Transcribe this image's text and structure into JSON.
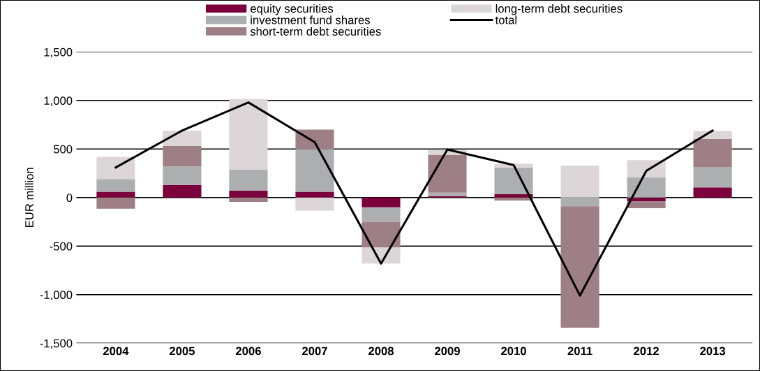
{
  "chart_data": {
    "type": "bar",
    "stacked": true,
    "ylabel": "EUR million",
    "categories": [
      "2004",
      "2005",
      "2006",
      "2007",
      "2008",
      "2009",
      "2010",
      "2011",
      "2012",
      "2013"
    ],
    "series": [
      {
        "name": "equity securities",
        "color": "#7b003c",
        "values": [
          60,
          130,
          70,
          60,
          -100,
          15,
          35,
          0,
          -40,
          105
        ]
      },
      {
        "name": "investment fund shares",
        "color": "#adaeb0",
        "values": [
          130,
          190,
          220,
          440,
          -150,
          35,
          275,
          -90,
          210,
          210
        ]
      },
      {
        "name": "short-term debt securities",
        "color": "#9e7f86",
        "values": [
          -115,
          210,
          -45,
          200,
          -265,
          390,
          -30,
          -1250,
          -70,
          290
        ]
      },
      {
        "name": "long-term debt securities",
        "color": "#ddd6d9",
        "values": [
          230,
          160,
          725,
          -135,
          -165,
          50,
          40,
          330,
          175,
          80
        ]
      },
      {
        "name": "total",
        "type": "line",
        "color": "#000000",
        "values": [
          310,
          690,
          980,
          570,
          -680,
          495,
          335,
          -1010,
          275,
          690
        ]
      }
    ],
    "ylim": [
      -1500,
      1500
    ],
    "yticks": [
      {
        "value": -1500,
        "label": "-1,500"
      },
      {
        "value": -1000,
        "label": "-1,000"
      },
      -500,
      0,
      500,
      {
        "value": 1000,
        "label": "1,000"
      },
      {
        "value": 1500,
        "label": "1,500"
      }
    ],
    "grid": "y",
    "legend": "top",
    "marker": "none",
    "line_style": "solid"
  }
}
